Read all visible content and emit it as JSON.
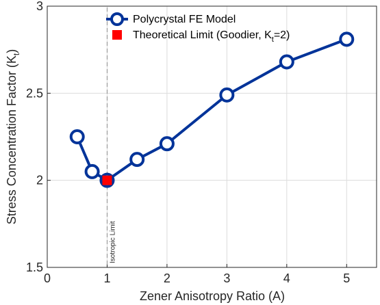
{
  "chart_data": {
    "type": "line",
    "xlabel": "Zener Anisotropy Ratio (A)",
    "ylabel_main": "Stress Concentration Factor (K",
    "ylabel_sub": "t",
    "ylabel_close": ")",
    "xlim": [
      0,
      5.5
    ],
    "ylim": [
      1.5,
      3
    ],
    "xticks": [
      0,
      1,
      2,
      3,
      4,
      5
    ],
    "xtick_labels": [
      "0",
      "1",
      "2",
      "3",
      "4",
      "5"
    ],
    "yticks": [
      1.5,
      2,
      2.5,
      3
    ],
    "ytick_labels": [
      "1.5",
      "2",
      "2.5",
      "3"
    ],
    "grid": true,
    "legend_position": "top-left",
    "series": [
      {
        "name": "Polycrystal FE Model",
        "style": "line-with-hollow-circle-markers",
        "color": "#003399",
        "x": [
          0.5,
          0.75,
          1.0,
          1.5,
          2.0,
          3.0,
          4.0,
          5.0
        ],
        "y": [
          2.25,
          2.05,
          2.0,
          2.12,
          2.21,
          2.49,
          2.68,
          2.81
        ]
      },
      {
        "name_main": "Theoretical Limit (Goodier, K",
        "name_sub": "t",
        "name_close": "=2)",
        "style": "square-marker",
        "color": "#ff0000",
        "x": [
          1.0
        ],
        "y": [
          2.0
        ]
      }
    ],
    "annotations": [
      {
        "text": "Isotropic Limit",
        "x": 1.0,
        "style": "dashed-vertical-line"
      }
    ]
  }
}
